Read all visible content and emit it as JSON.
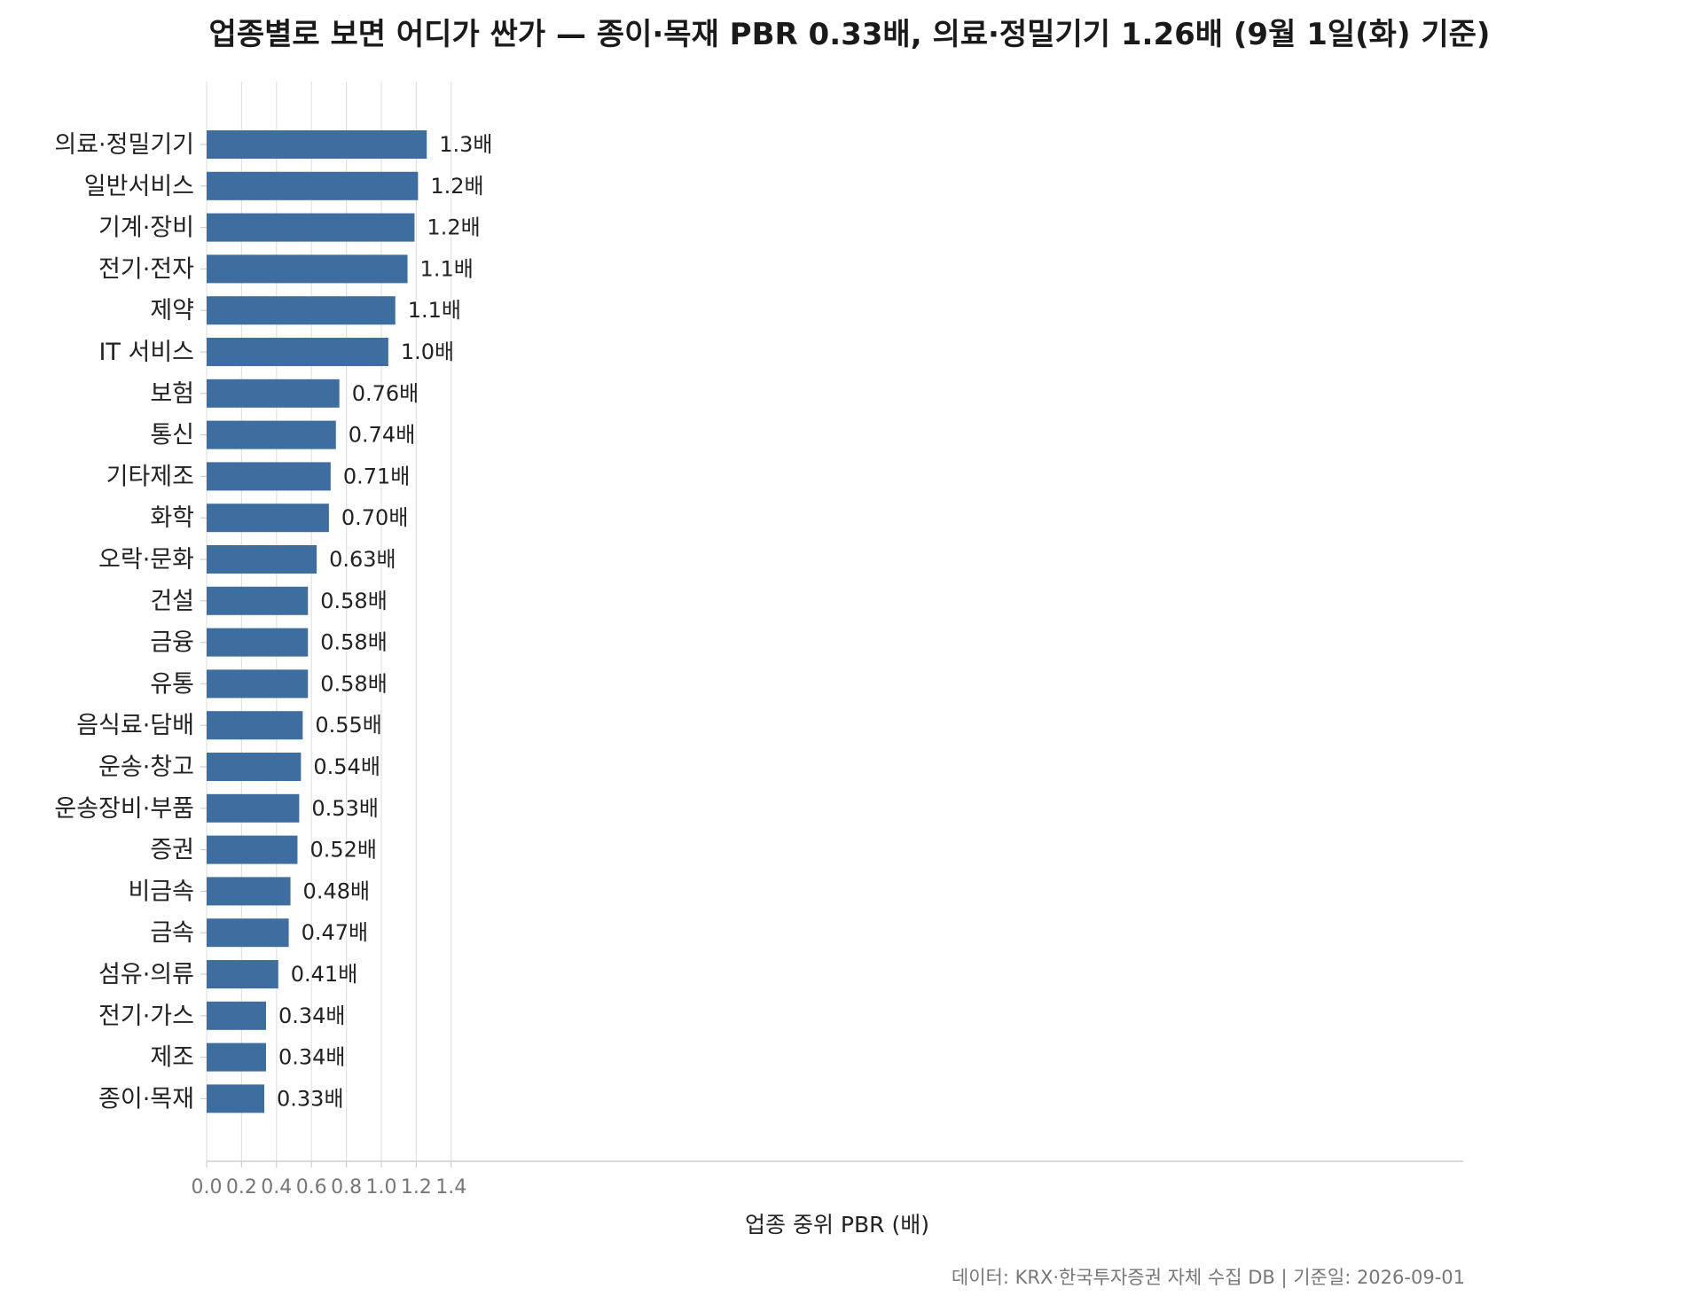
{
  "colors": {
    "bar": "#3e6e9f",
    "grid": "#e2e2e2",
    "axis": "#cfcfcf",
    "text": "#222222",
    "muted": "#777777"
  },
  "chart_data": {
    "type": "bar",
    "orientation": "horizontal",
    "title": "업종별로 보면 어디가 싼가 — 종이·목재 PBR 0.33배, 의료·정밀기기 1.26배 (9월 1일(화) 기준)",
    "xlabel": "업종 중위 PBR (배)",
    "ylabel": "",
    "xlim": [
      0,
      1.4
    ],
    "xticks": [
      "0.0",
      "0.2",
      "0.4",
      "0.6",
      "0.8",
      "1.0",
      "1.2",
      "1.4"
    ],
    "grid": "vertical",
    "categories": [
      "의료·정밀기기",
      "일반서비스",
      "기계·장비",
      "전기·전자",
      "제약",
      "IT 서비스",
      "보험",
      "통신",
      "기타제조",
      "화학",
      "오락·문화",
      "건설",
      "금융",
      "유통",
      "음식료·담배",
      "운송·창고",
      "운송장비·부품",
      "증권",
      "비금속",
      "금속",
      "섬유·의류",
      "전기·가스",
      "제조",
      "종이·목재"
    ],
    "values": [
      1.26,
      1.21,
      1.19,
      1.15,
      1.08,
      1.04,
      0.76,
      0.74,
      0.71,
      0.7,
      0.63,
      0.58,
      0.58,
      0.58,
      0.55,
      0.54,
      0.53,
      0.52,
      0.48,
      0.47,
      0.41,
      0.34,
      0.34,
      0.33
    ],
    "data_labels": [
      "1.3배",
      "1.2배",
      "1.2배",
      "1.1배",
      "1.1배",
      "1.0배",
      "0.76배",
      "0.74배",
      "0.71배",
      "0.70배",
      "0.63배",
      "0.58배",
      "0.58배",
      "0.58배",
      "0.55배",
      "0.54배",
      "0.53배",
      "0.52배",
      "0.48배",
      "0.47배",
      "0.41배",
      "0.34배",
      "0.34배",
      "0.33배"
    ],
    "footer": "데이터: KRX·한국투자증권 자체 수집 DB  |  기준일: 2026-09-01"
  }
}
